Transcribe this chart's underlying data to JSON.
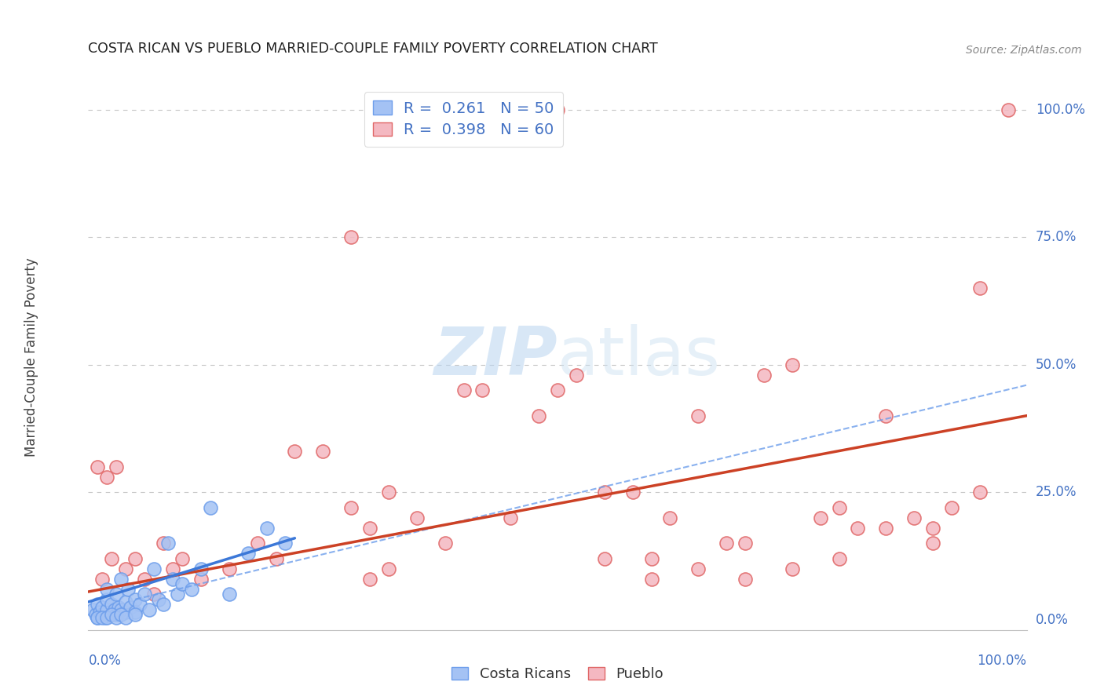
{
  "title": "COSTA RICAN VS PUEBLO MARRIED-COUPLE FAMILY POVERTY CORRELATION CHART",
  "source": "Source: ZipAtlas.com",
  "ylabel": "Married-Couple Family Poverty",
  "watermark_zip": "ZIP",
  "watermark_atlas": "atlas",
  "xlim": [
    0,
    1
  ],
  "ylim": [
    -0.02,
    1.05
  ],
  "ytick_labels": [
    "100.0%",
    "75.0%",
    "50.0%",
    "25.0%",
    "0.0%"
  ],
  "ytick_values": [
    1.0,
    0.75,
    0.5,
    0.25,
    0.0
  ],
  "legend_cr_r": "0.261",
  "legend_cr_n": "50",
  "legend_pu_r": "0.398",
  "legend_pu_n": "60",
  "cr_color": "#a4c2f4",
  "pu_color": "#f4b8c1",
  "cr_edge_color": "#6d9eeb",
  "pu_edge_color": "#e06666",
  "cr_line_color": "#3c78d8",
  "pu_line_color": "#cc4125",
  "dash_line_color": "#6d9eeb",
  "background": "#ffffff",
  "grid_color": "#c0c0c0",
  "title_color": "#222222",
  "source_color": "#888888",
  "label_color": "#4472c4",
  "legend_box_color": "#e8f0fe",
  "legend_box_edge_cr": "#6d9eeb",
  "legend_box_edge_pu": "#e06666",
  "cr_scatter_x": [
    0.005,
    0.008,
    0.01,
    0.01,
    0.012,
    0.015,
    0.015,
    0.018,
    0.02,
    0.02,
    0.02,
    0.025,
    0.025,
    0.028,
    0.03,
    0.03,
    0.032,
    0.035,
    0.035,
    0.04,
    0.04,
    0.042,
    0.045,
    0.05,
    0.05,
    0.055,
    0.06,
    0.065,
    0.07,
    0.075,
    0.08,
    0.085,
    0.09,
    0.095,
    0.1,
    0.11,
    0.12,
    0.13,
    0.15,
    0.17,
    0.19,
    0.21,
    0.01,
    0.015,
    0.02,
    0.025,
    0.03,
    0.035,
    0.04,
    0.05
  ],
  "cr_scatter_y": [
    0.02,
    0.01,
    0.005,
    0.03,
    0.015,
    0.01,
    0.025,
    0.005,
    0.02,
    0.04,
    0.06,
    0.01,
    0.03,
    0.02,
    0.01,
    0.05,
    0.025,
    0.02,
    0.08,
    0.015,
    0.035,
    0.06,
    0.025,
    0.04,
    0.015,
    0.03,
    0.05,
    0.02,
    0.1,
    0.04,
    0.03,
    0.15,
    0.08,
    0.05,
    0.07,
    0.06,
    0.1,
    0.22,
    0.05,
    0.13,
    0.18,
    0.15,
    0.005,
    0.005,
    0.005,
    0.01,
    0.005,
    0.01,
    0.005,
    0.01
  ],
  "pu_scatter_x": [
    0.01,
    0.015,
    0.02,
    0.025,
    0.03,
    0.04,
    0.05,
    0.06,
    0.07,
    0.08,
    0.09,
    0.1,
    0.12,
    0.15,
    0.18,
    0.2,
    0.22,
    0.25,
    0.28,
    0.3,
    0.32,
    0.35,
    0.38,
    0.4,
    0.42,
    0.45,
    0.48,
    0.5,
    0.52,
    0.55,
    0.58,
    0.6,
    0.62,
    0.65,
    0.68,
    0.7,
    0.72,
    0.75,
    0.78,
    0.8,
    0.82,
    0.85,
    0.88,
    0.9,
    0.92,
    0.95,
    0.98,
    0.5,
    0.95,
    0.28,
    0.3,
    0.32,
    0.55,
    0.6,
    0.65,
    0.7,
    0.75,
    0.8,
    0.85,
    0.9
  ],
  "pu_scatter_y": [
    0.3,
    0.08,
    0.28,
    0.12,
    0.3,
    0.1,
    0.12,
    0.08,
    0.05,
    0.15,
    0.1,
    0.12,
    0.08,
    0.1,
    0.15,
    0.12,
    0.33,
    0.33,
    0.75,
    0.18,
    0.25,
    0.2,
    0.15,
    0.45,
    0.45,
    0.2,
    0.4,
    0.45,
    0.48,
    0.25,
    0.25,
    0.12,
    0.2,
    0.4,
    0.15,
    0.15,
    0.48,
    0.5,
    0.2,
    0.22,
    0.18,
    0.4,
    0.2,
    0.18,
    0.22,
    0.25,
    1.0,
    1.0,
    0.65,
    0.22,
    0.08,
    0.1,
    0.12,
    0.08,
    0.1,
    0.08,
    0.1,
    0.12,
    0.18,
    0.15
  ],
  "cr_trend_x0": 0.0,
  "cr_trend_y0": 0.035,
  "cr_trend_x1": 0.22,
  "cr_trend_y1": 0.16,
  "pu_trend_x0": 0.0,
  "pu_trend_y0": 0.055,
  "pu_trend_x1": 1.0,
  "pu_trend_y1": 0.4,
  "dash_trend_x0": 0.05,
  "dash_trend_y0": 0.04,
  "dash_trend_x1": 1.0,
  "dash_trend_y1": 0.46
}
